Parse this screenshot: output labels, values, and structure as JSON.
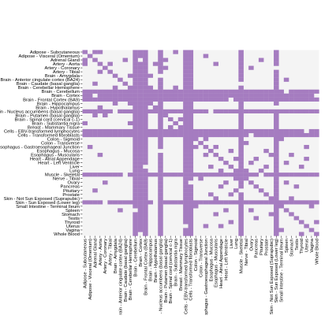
{
  "chart_data": {
    "type": "heatmap",
    "title": "",
    "xlabel": "",
    "ylabel": "",
    "grid": false,
    "legend": "none",
    "colors": {
      "on": "#a57cc0",
      "off": "#f4f4f4",
      "background": "#ffffff",
      "text": "#000000"
    },
    "tissues": [
      "Adipose - Subcutaneous",
      "Adipose - Visceral (Omentum)",
      "Adrenal Gland",
      "Artery - Aorta",
      "Artery - Coronary",
      "Artery - Tibial",
      "Brain - Amygdala",
      "Brain - Anterior cingulate cortex (BA24)",
      "Brain - Caudate (basal ganglia)",
      "Brain - Cerebellar Hemisphere",
      "Brain - Cerebellum",
      "Brain - Cortex",
      "Brain - Frontal Cortex (BA9)",
      "Brain - Hippocampus",
      "Brain - Hypothalamus",
      "Brain - Nucleus accumbens (basal ganglia)",
      "Brain - Putamen (basal ganglia)",
      "Brain - Spinal cord (cervical c-1)",
      "Brain - Substantia nigra",
      "Breast - Mammary Tissue",
      "Cells - EBV-transformed lymphocytes",
      "Cells - Transformed fibroblasts",
      "Colon - Sigmoid",
      "Colon - Transverse",
      "Esophagus - Gastroesophageal Junction",
      "Esophagus - Mucosa",
      "Esophagus - Muscularis",
      "Heart - Atrial Appendage",
      "Heart - Left Ventricle",
      "Liver",
      "Lung",
      "Muscle - Skeletal",
      "Nerve - Tibial",
      "Ovary",
      "Pancreas",
      "Pituitary",
      "Prostate",
      "Skin - Not Sun Exposed (Suprapubic)",
      "Skin - Sun Exposed (Lower leg)",
      "Small Intestine - Terminal Ileum",
      "Spleen",
      "Stomach",
      "Testis",
      "Thyroid",
      "Uterus",
      "Vagina",
      "Whole Blood"
    ],
    "hub_columns": [
      10,
      11,
      12,
      15,
      20,
      21,
      31,
      38
    ],
    "extra_cells": [
      [
        0,
        0
      ],
      [
        1,
        1
      ],
      [
        0,
        2
      ],
      [
        3,
        0
      ],
      [
        5,
        3
      ],
      [
        8,
        2
      ],
      [
        6,
        9
      ],
      [
        9,
        13
      ],
      [
        2,
        16
      ],
      [
        0,
        18
      ],
      [
        1,
        24
      ],
      [
        3,
        26
      ],
      [
        4,
        33
      ],
      [
        2,
        35
      ],
      [
        7,
        40
      ],
      [
        13,
        6
      ],
      [
        16,
        4
      ],
      [
        18,
        9
      ],
      [
        25,
        29
      ],
      [
        28,
        33
      ],
      [
        26,
        41
      ],
      [
        29,
        36
      ],
      [
        30,
        27
      ],
      [
        33,
        40
      ],
      [
        35,
        30
      ],
      [
        36,
        25
      ],
      [
        37,
        26
      ],
      [
        39,
        22
      ],
      [
        42,
        34
      ],
      [
        44,
        24
      ],
      [
        45,
        39
      ],
      [
        46,
        43
      ],
      [
        22,
        24
      ],
      [
        24,
        26
      ],
      [
        23,
        32
      ],
      [
        27,
        44
      ],
      [
        32,
        30
      ],
      [
        34,
        27
      ],
      [
        40,
        28
      ],
      [
        41,
        37
      ],
      [
        43,
        29
      ],
      [
        38,
        42
      ],
      [
        17,
        19
      ],
      [
        19,
        17
      ],
      [
        14,
        3
      ],
      [
        12,
        27
      ],
      [
        11,
        35
      ],
      [
        15,
        42
      ]
    ],
    "removed_cells": [
      [
        2,
        11
      ],
      [
        6,
        15
      ],
      [
        8,
        31
      ],
      [
        14,
        38
      ],
      [
        29,
        12
      ],
      [
        33,
        21
      ],
      [
        40,
        10
      ],
      [
        44,
        20
      ],
      [
        46,
        11
      ],
      [
        4,
        38
      ],
      [
        25,
        15
      ],
      [
        35,
        31
      ]
    ]
  }
}
